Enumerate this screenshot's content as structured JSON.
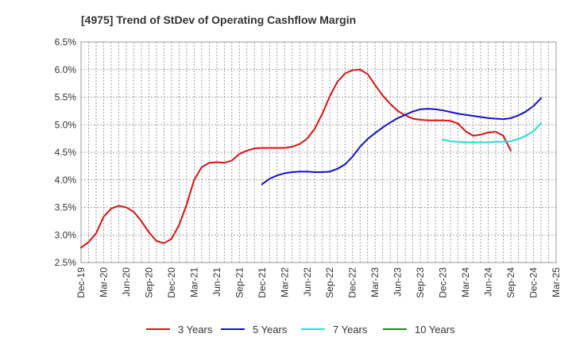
{
  "chart_data": {
    "type": "line",
    "title": "[4975]  Trend of StDev of Operating Cashflow Margin",
    "xlabel": "",
    "ylabel": "",
    "x_ticks": [
      "Dec-19",
      "Mar-20",
      "Jun-20",
      "Sep-20",
      "Dec-20",
      "Mar-21",
      "Jun-21",
      "Sep-21",
      "Dec-21",
      "Mar-22",
      "Jun-22",
      "Sep-22",
      "Dec-22",
      "Mar-23",
      "Jun-23",
      "Sep-23",
      "Dec-23",
      "Mar-24",
      "Jun-24",
      "Sep-24",
      "Dec-24",
      "Mar-25"
    ],
    "y_ticks": [
      "2.5%",
      "3.0%",
      "3.5%",
      "4.0%",
      "4.5%",
      "5.0%",
      "5.5%",
      "6.0%",
      "6.5%"
    ],
    "ylim": [
      2.5,
      6.5
    ],
    "grid": true,
    "legend_position": "bottom",
    "series": [
      {
        "name": "3 Years",
        "color": "#dd1111",
        "start": "Dec-19",
        "values": [
          2.77,
          2.87,
          3.03,
          3.33,
          3.48,
          3.53,
          3.5,
          3.42,
          3.25,
          3.05,
          2.89,
          2.85,
          2.93,
          3.18,
          3.55,
          4.0,
          4.23,
          4.31,
          4.32,
          4.31,
          4.35,
          4.47,
          4.53,
          4.57,
          4.58,
          4.58,
          4.58,
          4.58,
          4.6,
          4.65,
          4.75,
          4.93,
          5.2,
          5.52,
          5.78,
          5.93,
          5.99,
          6.0,
          5.92,
          5.72,
          5.53,
          5.38,
          5.25,
          5.17,
          5.11,
          5.09,
          5.08,
          5.08,
          5.08,
          5.07,
          5.02,
          4.88,
          4.8,
          4.82,
          4.86,
          4.87,
          4.8,
          4.53
        ]
      },
      {
        "name": "5 Years",
        "color": "#1111cc",
        "start": "Dec-21",
        "values": [
          3.92,
          4.02,
          4.08,
          4.12,
          4.14,
          4.15,
          4.15,
          4.14,
          4.14,
          4.15,
          4.2,
          4.28,
          4.42,
          4.6,
          4.74,
          4.85,
          4.95,
          5.04,
          5.12,
          5.18,
          5.24,
          5.28,
          5.29,
          5.28,
          5.26,
          5.23,
          5.2,
          5.18,
          5.16,
          5.14,
          5.12,
          5.11,
          5.1,
          5.12,
          5.17,
          5.24,
          5.34,
          5.48
        ]
      },
      {
        "name": "7 Years",
        "color": "#22dddd",
        "start": "Dec-23",
        "values": [
          4.73,
          4.7,
          4.69,
          4.68,
          4.68,
          4.68,
          4.68,
          4.69,
          4.69,
          4.7,
          4.74,
          4.8,
          4.88,
          5.03
        ]
      },
      {
        "name": "10 Years",
        "color": "#228822",
        "start": "Dec-24",
        "values": []
      }
    ]
  }
}
